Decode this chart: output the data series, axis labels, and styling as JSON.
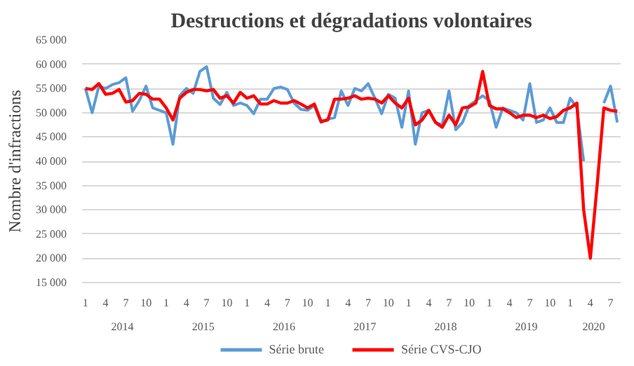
{
  "chart_data": {
    "type": "line",
    "title": "Destructions et dégradations volontaires",
    "ylabel": "Nombre d'infractions",
    "categories": [
      "1",
      null,
      null,
      "4",
      null,
      null,
      "7",
      null,
      null,
      "10",
      null,
      null,
      "1",
      null,
      null,
      "4",
      null,
      null,
      "7",
      null,
      null,
      "10",
      null,
      null,
      "1",
      null,
      null,
      "4",
      null,
      null,
      "7",
      null,
      null,
      "10",
      null,
      null,
      "1",
      null,
      null,
      "4",
      null,
      null,
      "7",
      null,
      null,
      "10",
      null,
      null,
      "1",
      null,
      null,
      "4",
      null,
      null,
      "7",
      null,
      null,
      "10",
      null,
      null,
      "1",
      null,
      null,
      "4",
      null,
      null,
      "7",
      null,
      null,
      "10",
      null,
      null,
      "1",
      null,
      null,
      "4",
      null,
      null,
      "7",
      null
    ],
    "annotations": [
      "2014",
      "2015",
      "2016",
      "2017",
      "2018",
      "2019",
      "2020"
    ],
    "series": [
      {
        "name": "Série brute",
        "color": "#5b9bd5",
        "values": [
          55000,
          50000,
          55500,
          55000,
          55800,
          56200,
          57200,
          50300,
          52500,
          55500,
          51000,
          50500,
          50000,
          43500,
          53500,
          55000,
          54000,
          58500,
          59500,
          53000,
          51700,
          54200,
          51500,
          52000,
          51500,
          49800,
          52800,
          52800,
          55000,
          55300,
          54800,
          52000,
          50700,
          50500,
          51500,
          48000,
          48700,
          49000,
          54500,
          51500,
          55000,
          54500,
          56000,
          53000,
          49800,
          53800,
          53000,
          47000,
          54500,
          43500,
          50000,
          50500,
          48000,
          47500,
          54500,
          46500,
          48000,
          51500,
          52500,
          53500,
          52500,
          47000,
          51000,
          50500,
          50000,
          48500,
          56000,
          48000,
          48500,
          51000,
          48000,
          48000,
          53000,
          51000,
          40000,
          null,
          null,
          52000,
          55500,
          48000
        ]
      },
      {
        "name": "Série CVS-CJO",
        "color": "#ff0000",
        "values": [
          55000,
          54800,
          56000,
          53800,
          54000,
          54800,
          52200,
          52500,
          54000,
          53800,
          52800,
          52800,
          51000,
          48500,
          53000,
          54200,
          54800,
          54800,
          54500,
          54800,
          53000,
          53500,
          52000,
          54200,
          53000,
          53500,
          51800,
          51800,
          52500,
          52000,
          52000,
          52500,
          51800,
          51000,
          51800,
          48200,
          48500,
          52800,
          52800,
          53000,
          53500,
          52800,
          53000,
          52800,
          52000,
          53500,
          52000,
          51000,
          53000,
          47500,
          48500,
          50500,
          48000,
          47000,
          49500,
          47500,
          51000,
          51200,
          52000,
          58500,
          51500,
          50800,
          50800,
          50000,
          49000,
          49500,
          49500,
          49000,
          49500,
          48800,
          49200,
          50500,
          51000,
          52000,
          30000,
          20000,
          35000,
          51000,
          50500,
          50300
        ]
      }
    ],
    "ylim": [
      15000,
      65000
    ],
    "yticks": [
      {
        "value": 15000,
        "label": "15 000"
      },
      {
        "value": 20000,
        "label": "20 000"
      },
      {
        "value": 25000,
        "label": "25 000"
      },
      {
        "value": 30000,
        "label": "30 000"
      },
      {
        "value": 35000,
        "label": "35 000"
      },
      {
        "value": 40000,
        "label": "40 000"
      },
      {
        "value": 45000,
        "label": "45 000"
      },
      {
        "value": 50000,
        "label": "50 000"
      },
      {
        "value": 55000,
        "label": "55 000"
      },
      {
        "value": 60000,
        "label": "60 000"
      },
      {
        "value": 65000,
        "label": "65 000"
      }
    ],
    "grid": "y",
    "legend": "bottom"
  }
}
